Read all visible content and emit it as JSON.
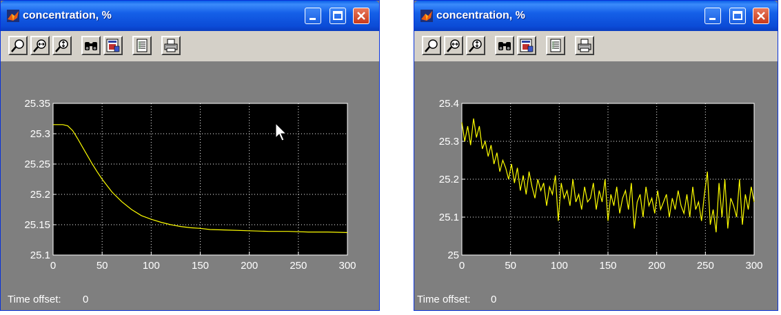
{
  "windows": [
    {
      "id": "left",
      "title": "concentration, %",
      "time_offset_label": "Time offset:",
      "time_offset_value": "0",
      "chart_data": {
        "type": "line",
        "x_ticks": [
          "0",
          "50",
          "100",
          "150",
          "200",
          "250",
          "300"
        ],
        "y_ticks": [
          "25.1",
          "25.15",
          "25.2",
          "25.25",
          "25.3",
          "25.35"
        ],
        "xlim": [
          0,
          300
        ],
        "ylim": [
          25.1,
          25.35
        ],
        "grid": true,
        "line_color": "#ffff00",
        "series": [
          {
            "x": [
              0,
              5,
              10,
              15,
              20,
              25,
              30,
              35,
              40,
              45,
              50,
              60,
              70,
              80,
              90,
              100,
              110,
              120,
              130,
              140,
              150,
              160,
              180,
              200,
              220,
              240,
              260,
              280,
              300
            ],
            "y": [
              25.315,
              25.315,
              25.315,
              25.313,
              25.305,
              25.292,
              25.278,
              25.264,
              25.25,
              25.237,
              25.225,
              25.204,
              25.188,
              25.175,
              25.165,
              25.159,
              25.154,
              25.15,
              25.147,
              25.145,
              25.144,
              25.142,
              25.141,
              25.14,
              25.139,
              25.139,
              25.138,
              25.138,
              25.137
            ]
          }
        ]
      }
    },
    {
      "id": "right",
      "title": "concentration, %",
      "time_offset_label": "Time offset:",
      "time_offset_value": "0",
      "chart_data": {
        "type": "line",
        "x_ticks": [
          "0",
          "50",
          "100",
          "150",
          "200",
          "250",
          "300"
        ],
        "y_ticks": [
          "25",
          "25.1",
          "25.2",
          "25.3",
          "25.4"
        ],
        "xlim": [
          0,
          300
        ],
        "ylim": [
          25.0,
          25.4
        ],
        "grid": true,
        "line_color": "#ffff00",
        "series": [
          {
            "x": [
              0,
              3,
              6,
              9,
              12,
              15,
              18,
              21,
              24,
              27,
              30,
              33,
              36,
              39,
              42,
              45,
              48,
              51,
              54,
              57,
              60,
              63,
              66,
              69,
              72,
              75,
              78,
              81,
              84,
              87,
              90,
              93,
              96,
              99,
              102,
              105,
              108,
              111,
              114,
              117,
              120,
              123,
              126,
              129,
              132,
              135,
              138,
              141,
              144,
              147,
              150,
              153,
              156,
              159,
              162,
              165,
              168,
              171,
              174,
              177,
              180,
              183,
              186,
              189,
              192,
              195,
              198,
              201,
              204,
              207,
              210,
              213,
              216,
              219,
              222,
              225,
              228,
              231,
              234,
              237,
              240,
              243,
              246,
              249,
              252,
              255,
              258,
              261,
              264,
              267,
              270,
              273,
              276,
              279,
              282,
              285,
              288,
              291,
              294,
              297,
              300
            ],
            "y": [
              25.35,
              25.3,
              25.34,
              25.29,
              25.36,
              25.31,
              25.34,
              25.28,
              25.3,
              25.26,
              25.29,
              25.24,
              25.27,
              25.22,
              25.25,
              25.23,
              25.2,
              25.24,
              25.19,
              25.23,
              25.17,
              25.21,
              25.16,
              25.22,
              25.18,
              25.15,
              25.2,
              25.17,
              25.19,
              25.13,
              25.18,
              25.16,
              25.21,
              25.09,
              25.19,
              25.15,
              25.17,
              25.13,
              25.2,
              25.14,
              25.16,
              25.12,
              25.18,
              25.14,
              25.15,
              25.19,
              25.12,
              25.17,
              25.14,
              25.2,
              25.09,
              25.16,
              25.13,
              25.18,
              25.11,
              25.15,
              25.17,
              25.12,
              25.19,
              25.07,
              25.14,
              25.16,
              25.1,
              25.18,
              25.13,
              25.15,
              25.11,
              25.17,
              25.12,
              25.14,
              25.16,
              25.1,
              25.15,
              25.12,
              25.17,
              25.13,
              25.11,
              25.16,
              25.1,
              25.18,
              25.12,
              25.14,
              25.09,
              25.16,
              25.22,
              25.08,
              25.12,
              25.06,
              25.19,
              25.1,
              25.2,
              25.07,
              25.15,
              25.13,
              25.1,
              25.2,
              25.08,
              25.16,
              25.12,
              25.18,
              25.14
            ]
          }
        ]
      }
    }
  ],
  "toolbar": [
    "zoom-in-icon",
    "zoom-x-icon",
    "zoom-y-icon",
    "autoscale-binoculars-icon",
    "save-axes-icon",
    "parameters-icon",
    "print-icon"
  ]
}
